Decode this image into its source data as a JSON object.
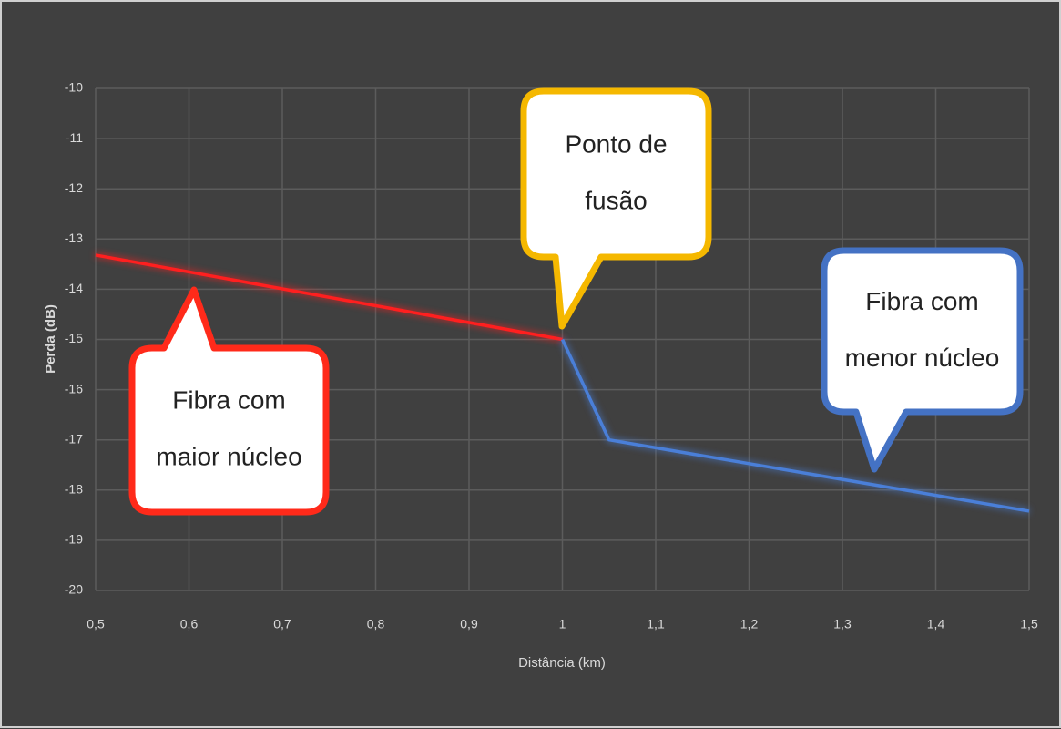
{
  "chart_data": {
    "type": "line",
    "xlabel": "Distância (km)",
    "ylabel": "Perda (dB)",
    "xlim": [
      0.5,
      1.5
    ],
    "xticks": [
      {
        "value": 0.5,
        "label": "0,5"
      },
      {
        "value": 0.6,
        "label": "0,6"
      },
      {
        "value": 0.7,
        "label": "0,7"
      },
      {
        "value": 0.8,
        "label": "0,8"
      },
      {
        "value": 0.9,
        "label": "0,9"
      },
      1,
      {
        "value": 1.1,
        "label": "1,1"
      },
      {
        "value": 1.2,
        "label": "1,2"
      },
      {
        "value": 1.3,
        "label": "1,3"
      },
      {
        "value": 1.4,
        "label": "1,4"
      },
      {
        "value": 1.5,
        "label": "1,5"
      }
    ],
    "ylim": [
      -20,
      -10
    ],
    "yticks": [
      -10,
      -11,
      -12,
      -13,
      -14,
      -15,
      -16,
      -17,
      -18,
      -19,
      -20
    ],
    "grid": true,
    "series": [
      {
        "color": "#ff1f1f",
        "x": [
          0.5,
          1
        ],
        "values": [
          -13.32,
          -15
        ]
      },
      {
        "color": "#4a7fd8",
        "x": [
          1,
          1.05,
          1.5
        ],
        "values": [
          -15,
          -17,
          -18.42
        ]
      }
    ],
    "annotations": [
      {
        "lines": [
          "Fibra com",
          "maior núcleo"
        ],
        "color": "#ff2a1a"
      },
      {
        "lines": [
          "Ponto de",
          "fusão"
        ],
        "color": "#f5b800"
      },
      {
        "lines": [
          "Fibra com",
          "menor núcleo"
        ],
        "color": "#4472c4"
      }
    ]
  }
}
